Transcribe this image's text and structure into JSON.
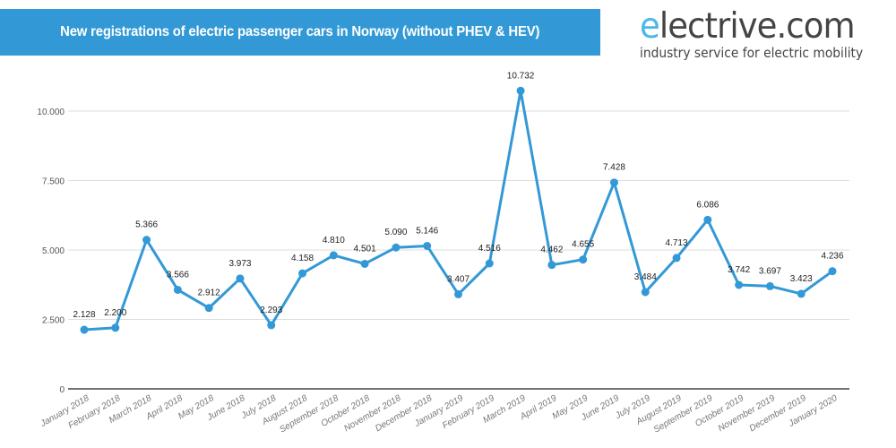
{
  "header": {
    "title": "New registrations of electric passenger cars in Norway (without PHEV & HEV)"
  },
  "logo": {
    "e": "e",
    "rest": "lectrive.com",
    "tagline": "industry service for electric mobility"
  },
  "chart_data": {
    "type": "line",
    "title": "New registrations of electric passenger cars in Norway (without PHEV & HEV)",
    "xlabel": "",
    "ylabel": "",
    "categories": [
      "January 2018",
      "February 2018",
      "March 2018",
      "April 2018",
      "May 2018",
      "June 2018",
      "July 2018",
      "August 2018",
      "September 2018",
      "October 2018",
      "November 2018",
      "December 2018",
      "January 2019",
      "February 2019",
      "March 2019",
      "April 2019",
      "May 2019",
      "June 2019",
      "July 2019",
      "August 2019",
      "September 2019",
      "October 2019",
      "November 2019",
      "December 2019",
      "January 2020"
    ],
    "values": [
      2128,
      2200,
      5366,
      3566,
      2912,
      3973,
      2293,
      4158,
      4810,
      4501,
      5090,
      5146,
      3407,
      4516,
      10732,
      4462,
      4655,
      7428,
      3484,
      4713,
      6086,
      3742,
      3697,
      3423,
      4236
    ],
    "data_labels": [
      "2.128",
      "2.200",
      "5.366",
      "3.566",
      "2.912",
      "3.973",
      "2.293",
      "4.158",
      "4.810",
      "4.501",
      "5.090",
      "5.146",
      "3.407",
      "4.516",
      "10.732",
      "4.462",
      "4.655",
      "7.428",
      "3.484",
      "4.713",
      "6.086",
      "3.742",
      "3.697",
      "3.423",
      "4.236"
    ],
    "yticks": [
      0,
      2500,
      5000,
      7500,
      10000
    ],
    "ytick_labels": [
      "0",
      "2.500",
      "5.000",
      "7.500",
      "10.000"
    ],
    "ylim": [
      0,
      12000
    ],
    "grid": true,
    "color": "#3399d6"
  }
}
